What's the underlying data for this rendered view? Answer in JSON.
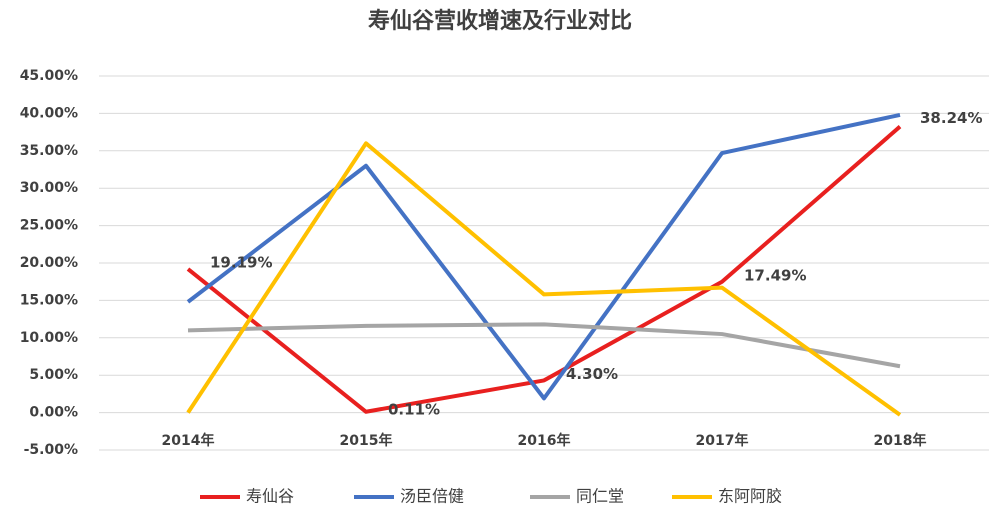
{
  "chart_data": {
    "type": "line",
    "title": "寿仙谷营收增速及行业对比",
    "categories": [
      "2014年",
      "2015年",
      "2016年",
      "2017年",
      "2018年"
    ],
    "series": [
      {
        "name": "寿仙谷",
        "color": "#e8201f",
        "values": [
          19.19,
          0.11,
          4.3,
          17.49,
          38.24
        ],
        "value_labels": [
          "19.19%",
          "0.11%",
          "4.30%",
          "17.49%",
          "38.24%"
        ]
      },
      {
        "name": "汤臣倍健",
        "color": "#4472c4",
        "values": [
          14.8,
          33.0,
          1.9,
          34.7,
          39.8
        ]
      },
      {
        "name": "同仁堂",
        "color": "#a5a5a5",
        "values": [
          11.0,
          11.6,
          11.8,
          10.5,
          6.2
        ]
      },
      {
        "name": "东阿阿胶",
        "color": "#ffc000",
        "values": [
          0.0,
          36.0,
          15.8,
          16.7,
          -0.3
        ]
      }
    ],
    "ylim": [
      -5,
      45
    ],
    "yticks": [
      {
        "value": -5,
        "label": "-5.00%"
      },
      {
        "value": 0,
        "label": "0.00%"
      },
      {
        "value": 5,
        "label": "5.00%"
      },
      {
        "value": 10,
        "label": "10.00%"
      },
      {
        "value": 15,
        "label": "15.00%"
      },
      {
        "value": 20,
        "label": "20.00%"
      },
      {
        "value": 25,
        "label": "25.00%"
      },
      {
        "value": 30,
        "label": "30.00%"
      },
      {
        "value": 35,
        "label": "35.00%"
      },
      {
        "value": 40,
        "label": "40.00%"
      },
      {
        "value": 45,
        "label": "45.00%"
      }
    ],
    "grid": true
  }
}
